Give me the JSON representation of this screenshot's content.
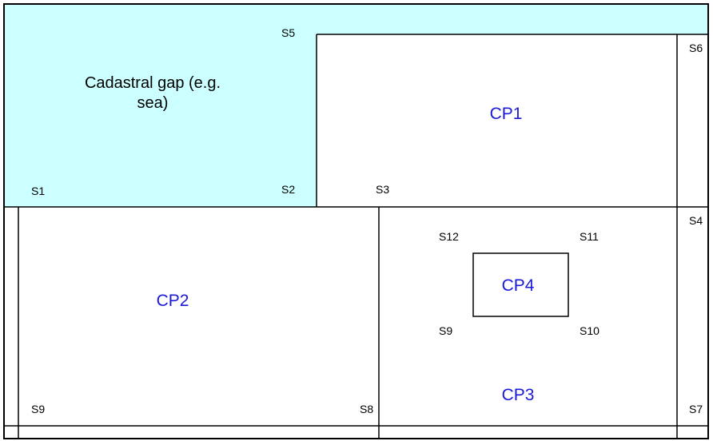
{
  "colors": {
    "gap_fill": "#ccffff",
    "line": "#000000",
    "parcel_label": "#1a1ad6"
  },
  "gap_label": {
    "line1": "Cadastral gap (e.g.",
    "line2": "sea)"
  },
  "parcels": {
    "cp1": "CP1",
    "cp2": "CP2",
    "cp3": "CP3",
    "cp4": "CP4"
  },
  "stations": {
    "s1": "S1",
    "s2": "S2",
    "s3": "S3",
    "s4": "S4",
    "s5": "S5",
    "s6": "S6",
    "s7": "S7",
    "s8": "S8",
    "s9_left": "S9",
    "s9_inner": "S9",
    "s10": "S10",
    "s11": "S11",
    "s12": "S12"
  }
}
